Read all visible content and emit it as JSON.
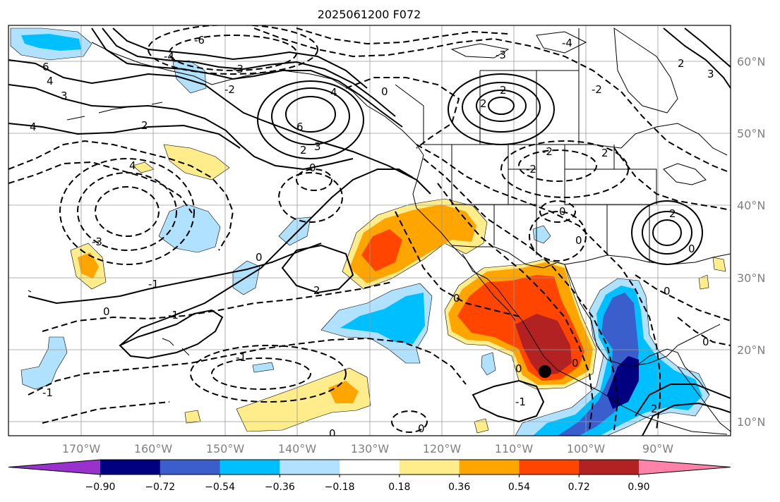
{
  "title": "2025061200 F072",
  "lat_labels": [
    "60°N",
    "50°N",
    "40°N",
    "30°N",
    "20°N",
    "10°N"
  ],
  "lon_labels": [
    "170°W",
    "160°W",
    "150°W",
    "140°W",
    "130°W",
    "120°W",
    "110°W",
    "100°W",
    "90°W"
  ],
  "colorbar": {
    "ticks": [
      "−0.90",
      "−0.72",
      "−0.54",
      "−0.36",
      "−0.18",
      "0.18",
      "0.36",
      "0.54",
      "0.72",
      "0.90"
    ],
    "colors": [
      "#9932cc",
      "#000080",
      "#3a5fcd",
      "#00bfff",
      "#b0e2ff",
      "#ffffff",
      "#ffec8b",
      "#ffa500",
      "#ff4500",
      "#b22222",
      "#ff82ab"
    ]
  },
  "contour_labels": [
    "0",
    "2",
    "3",
    "4",
    "6",
    "0",
    "-1",
    "-2",
    "-3",
    "-4",
    "-6"
  ],
  "marker": "storm-center"
}
